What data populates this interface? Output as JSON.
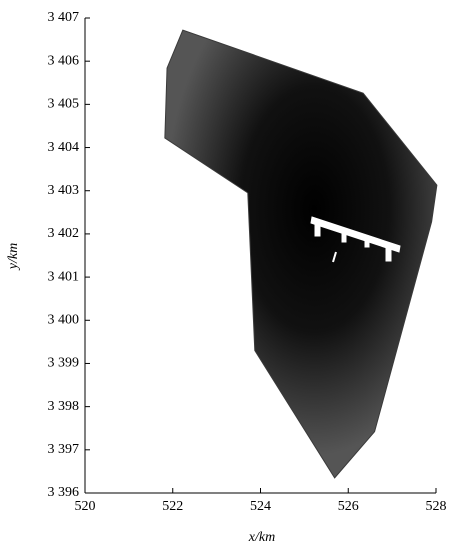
{
  "chart_data": {
    "type": "mesh",
    "x_label": "x/km",
    "y_label": "y/km",
    "x": [
      522.23,
      521.87,
      521.82,
      523.71,
      523.87,
      525.69,
      526.6,
      527.9,
      528.02,
      526.34
    ],
    "values": [
      3406.72,
      3405.84,
      3404.22,
      3402.95,
      3399.3,
      3396.35,
      3397.42,
      3402.28,
      3403.13,
      3405.26
    ],
    "color": "#3a3a3a",
    "xlim": [
      520,
      528
    ],
    "xticks": [
      520,
      522,
      524,
      526,
      528
    ],
    "ylim": [
      3396,
      3407
    ],
    "yticks": [
      {
        "value": 3396,
        "label": "3 396"
      },
      {
        "value": 3397,
        "label": "3 397"
      },
      {
        "value": 3398,
        "label": "3 398"
      },
      {
        "value": 3399,
        "label": "3 399"
      },
      {
        "value": 3400,
        "label": "3 400"
      },
      {
        "value": 3401,
        "label": "3 401"
      },
      {
        "value": 3402,
        "label": "3 402"
      },
      {
        "value": 3403,
        "label": "3 403"
      },
      {
        "value": 3404,
        "label": "3 404"
      },
      {
        "value": 3405,
        "label": "3 405"
      },
      {
        "value": 3406,
        "label": "3 406"
      },
      {
        "value": 3407,
        "label": "3 407"
      }
    ]
  }
}
